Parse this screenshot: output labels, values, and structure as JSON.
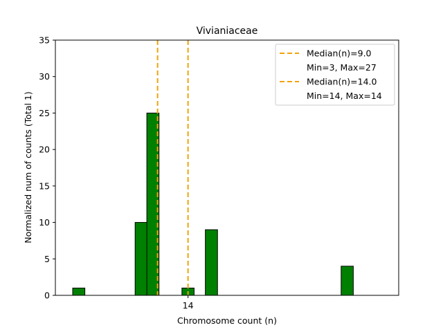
{
  "chart_data": {
    "type": "bar",
    "title": "Vivianiaceae",
    "xlabel": "Chromosome count (n)",
    "ylabel": "Normalized num of counts     (Total 1)",
    "ylim": [
      0,
      35
    ],
    "xlim": [
      5.5,
      27.5
    ],
    "yticks": [
      0,
      5,
      10,
      15,
      20,
      25,
      30,
      35
    ],
    "xticks": [
      {
        "value": 14,
        "label": "14"
      }
    ],
    "bar_width": 0.78,
    "bars": [
      {
        "x": 7,
        "value": 1
      },
      {
        "x": 11,
        "value": 10
      },
      {
        "x": 11.75,
        "value": 25
      },
      {
        "x": 14,
        "value": 1
      },
      {
        "x": 15.5,
        "value": 9
      },
      {
        "x": 24.2,
        "value": 4
      }
    ],
    "median_lines": [
      {
        "x": 12.05,
        "label": "Median(n)=9.0",
        "range_label": "Min=3, Max=27"
      },
      {
        "x": 14.0,
        "label": "Median(n)=14.0",
        "range_label": "Min=14, Max=14"
      }
    ],
    "legend_position": "upper right",
    "colors": {
      "bar": "#008000",
      "bar_edge": "#000000",
      "median": "#f0a30a"
    }
  }
}
